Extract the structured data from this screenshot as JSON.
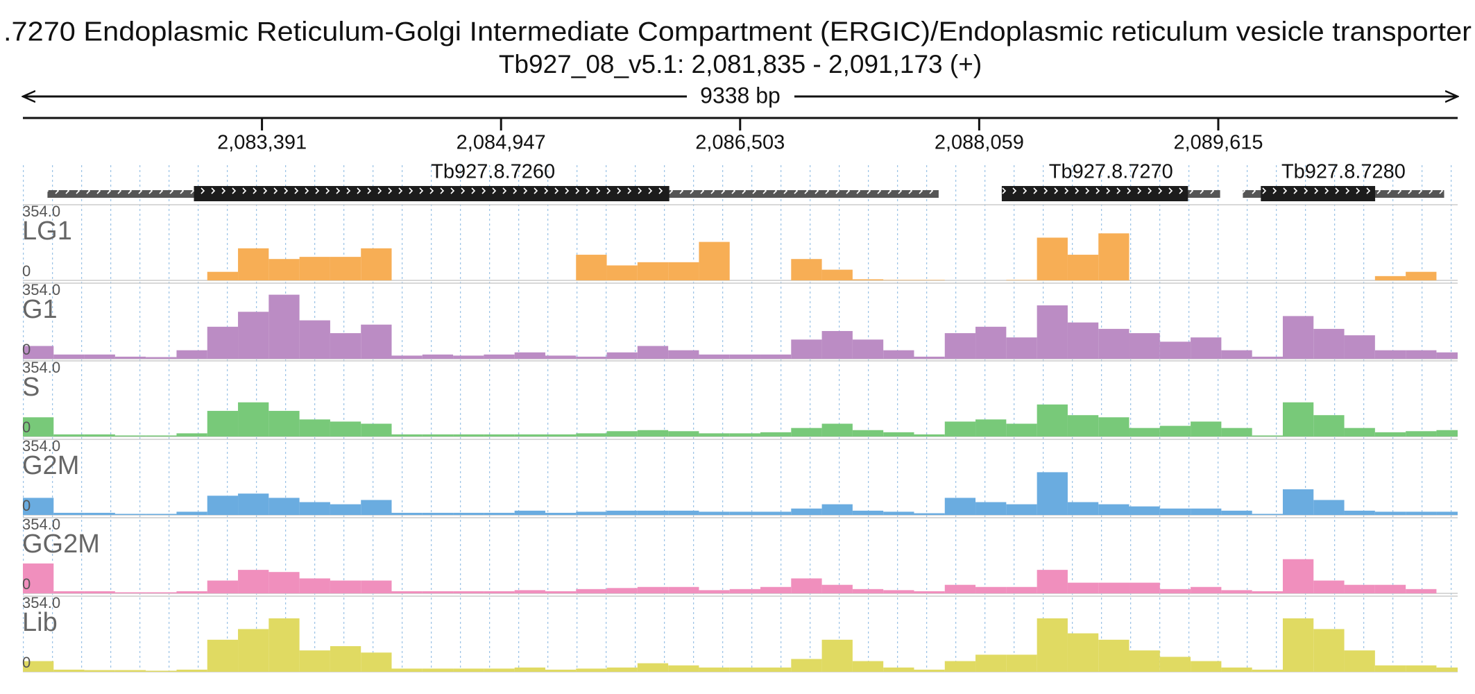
{
  "chart_data": {
    "type": "coverage",
    "title": ".7270  Endoplasmic Reticulum-Golgi Intermediate Compartment (ERGIC)/Endoplasmic reticulum vesicle transporter",
    "subtitle": "Tb927_08_v5.1: 2,081,835 - 2,091,173 (+)",
    "span_label": "9338 bp",
    "xlim": [
      2081835,
      2091173
    ],
    "xticks": [
      {
        "value": 2083391,
        "label": "2,083,391"
      },
      {
        "value": 2084947,
        "label": "2,084,947"
      },
      {
        "value": 2086503,
        "label": "2,086,503"
      },
      {
        "value": 2088059,
        "label": "2,088,059"
      },
      {
        "value": 2089615,
        "label": "2,089,615"
      }
    ],
    "genes": [
      {
        "name": "Tb927.8.7260",
        "start": 2081995,
        "end": 2087795,
        "cds_start": 2082948,
        "cds_end": 2086042
      },
      {
        "name": "Tb927.8.7270",
        "start": 2088206,
        "end": 2089627,
        "cds_start": 2088206,
        "cds_end": 2089418
      },
      {
        "name": "Tb927.8.7280",
        "start": 2089775,
        "end": 2091085,
        "cds_start": 2089892,
        "cds_end": 2090636
      }
    ],
    "ylim": [
      0,
      354
    ],
    "yticks": [
      0,
      {
        "value": 354,
        "label": "354.0"
      }
    ],
    "x": [
      2081835,
      2082035,
      2082235,
      2082435,
      2082635,
      2082835,
      2083035,
      2083235,
      2083435,
      2083635,
      2083835,
      2084035,
      2084235,
      2084435,
      2084635,
      2084835,
      2085035,
      2085235,
      2085435,
      2085635,
      2085835,
      2086035,
      2086235,
      2086435,
      2086635,
      2086835,
      2087035,
      2087235,
      2087435,
      2087635,
      2087835,
      2088035,
      2088235,
      2088435,
      2088635,
      2088835,
      2089035,
      2089235,
      2089435,
      2089635,
      2089835,
      2090035,
      2090235,
      2090435,
      2090635,
      2090835,
      2091035
    ],
    "series": [
      {
        "name": "LG1",
        "color": "#f7ae55",
        "values": [
          0,
          0,
          0,
          0,
          0,
          0,
          40,
          150,
          100,
          110,
          110,
          150,
          0,
          0,
          0,
          0,
          0,
          0,
          120,
          70,
          85,
          85,
          180,
          0,
          0,
          100,
          50,
          5,
          2,
          2,
          0,
          0,
          2,
          200,
          120,
          220,
          0,
          0,
          0,
          0,
          0,
          0,
          0,
          0,
          20,
          40,
          0
        ]
      },
      {
        "name": "G1",
        "color": "#bb8cc4",
        "values": [
          60,
          20,
          20,
          10,
          8,
          40,
          150,
          220,
          300,
          180,
          120,
          160,
          15,
          20,
          15,
          20,
          30,
          15,
          10,
          30,
          60,
          40,
          20,
          20,
          20,
          90,
          130,
          90,
          40,
          10,
          120,
          150,
          100,
          250,
          170,
          140,
          120,
          80,
          100,
          40,
          10,
          200,
          140,
          110,
          40,
          40,
          30
        ]
      },
      {
        "name": "S",
        "color": "#78c979",
        "values": [
          90,
          10,
          10,
          5,
          5,
          15,
          120,
          160,
          120,
          80,
          70,
          60,
          10,
          10,
          10,
          10,
          10,
          10,
          15,
          25,
          30,
          25,
          15,
          15,
          20,
          40,
          60,
          30,
          20,
          10,
          70,
          80,
          60,
          150,
          100,
          90,
          40,
          50,
          70,
          40,
          5,
          160,
          100,
          40,
          20,
          25,
          30
        ]
      },
      {
        "name": "G2M",
        "color": "#6aace0",
        "values": [
          80,
          10,
          10,
          5,
          5,
          15,
          90,
          100,
          80,
          60,
          50,
          70,
          10,
          10,
          10,
          10,
          20,
          10,
          15,
          20,
          20,
          20,
          15,
          15,
          15,
          30,
          50,
          20,
          15,
          8,
          80,
          60,
          50,
          200,
          60,
          50,
          40,
          30,
          30,
          20,
          5,
          120,
          70,
          20,
          15,
          15,
          15
        ]
      },
      {
        "name": "GG2M",
        "color": "#f08fbd",
        "values": [
          140,
          10,
          10,
          5,
          5,
          10,
          60,
          110,
          100,
          70,
          60,
          60,
          10,
          10,
          10,
          10,
          15,
          10,
          20,
          25,
          30,
          30,
          15,
          20,
          30,
          70,
          40,
          20,
          15,
          10,
          40,
          30,
          30,
          110,
          50,
          50,
          50,
          20,
          30,
          15,
          10,
          160,
          60,
          40,
          40,
          20,
          0
        ]
      },
      {
        "name": "Lib",
        "color": "#e0da62",
        "values": [
          50,
          10,
          8,
          8,
          5,
          10,
          150,
          200,
          250,
          100,
          120,
          90,
          15,
          15,
          15,
          15,
          20,
          10,
          15,
          20,
          40,
          30,
          20,
          20,
          20,
          60,
          150,
          50,
          20,
          10,
          50,
          80,
          80,
          250,
          180,
          150,
          100,
          70,
          50,
          20,
          10,
          250,
          200,
          100,
          30,
          30,
          20
        ]
      }
    ]
  }
}
